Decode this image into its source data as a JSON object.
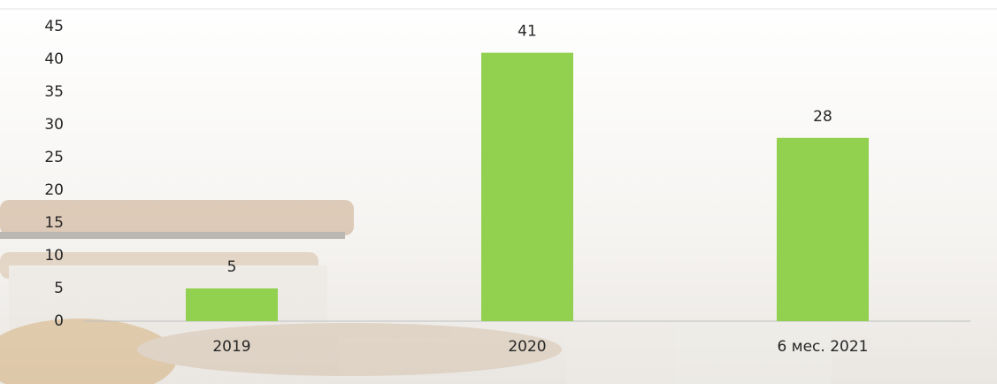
{
  "chart_data": {
    "type": "bar",
    "categories": [
      "2019",
      "2020",
      "6 мес. 2021"
    ],
    "values": [
      5,
      41,
      28
    ],
    "color": "#92d050",
    "ylim": [
      0,
      45
    ],
    "yticks": [
      0,
      5,
      10,
      15,
      20,
      25,
      30,
      35,
      40,
      45
    ],
    "grid": false
  }
}
